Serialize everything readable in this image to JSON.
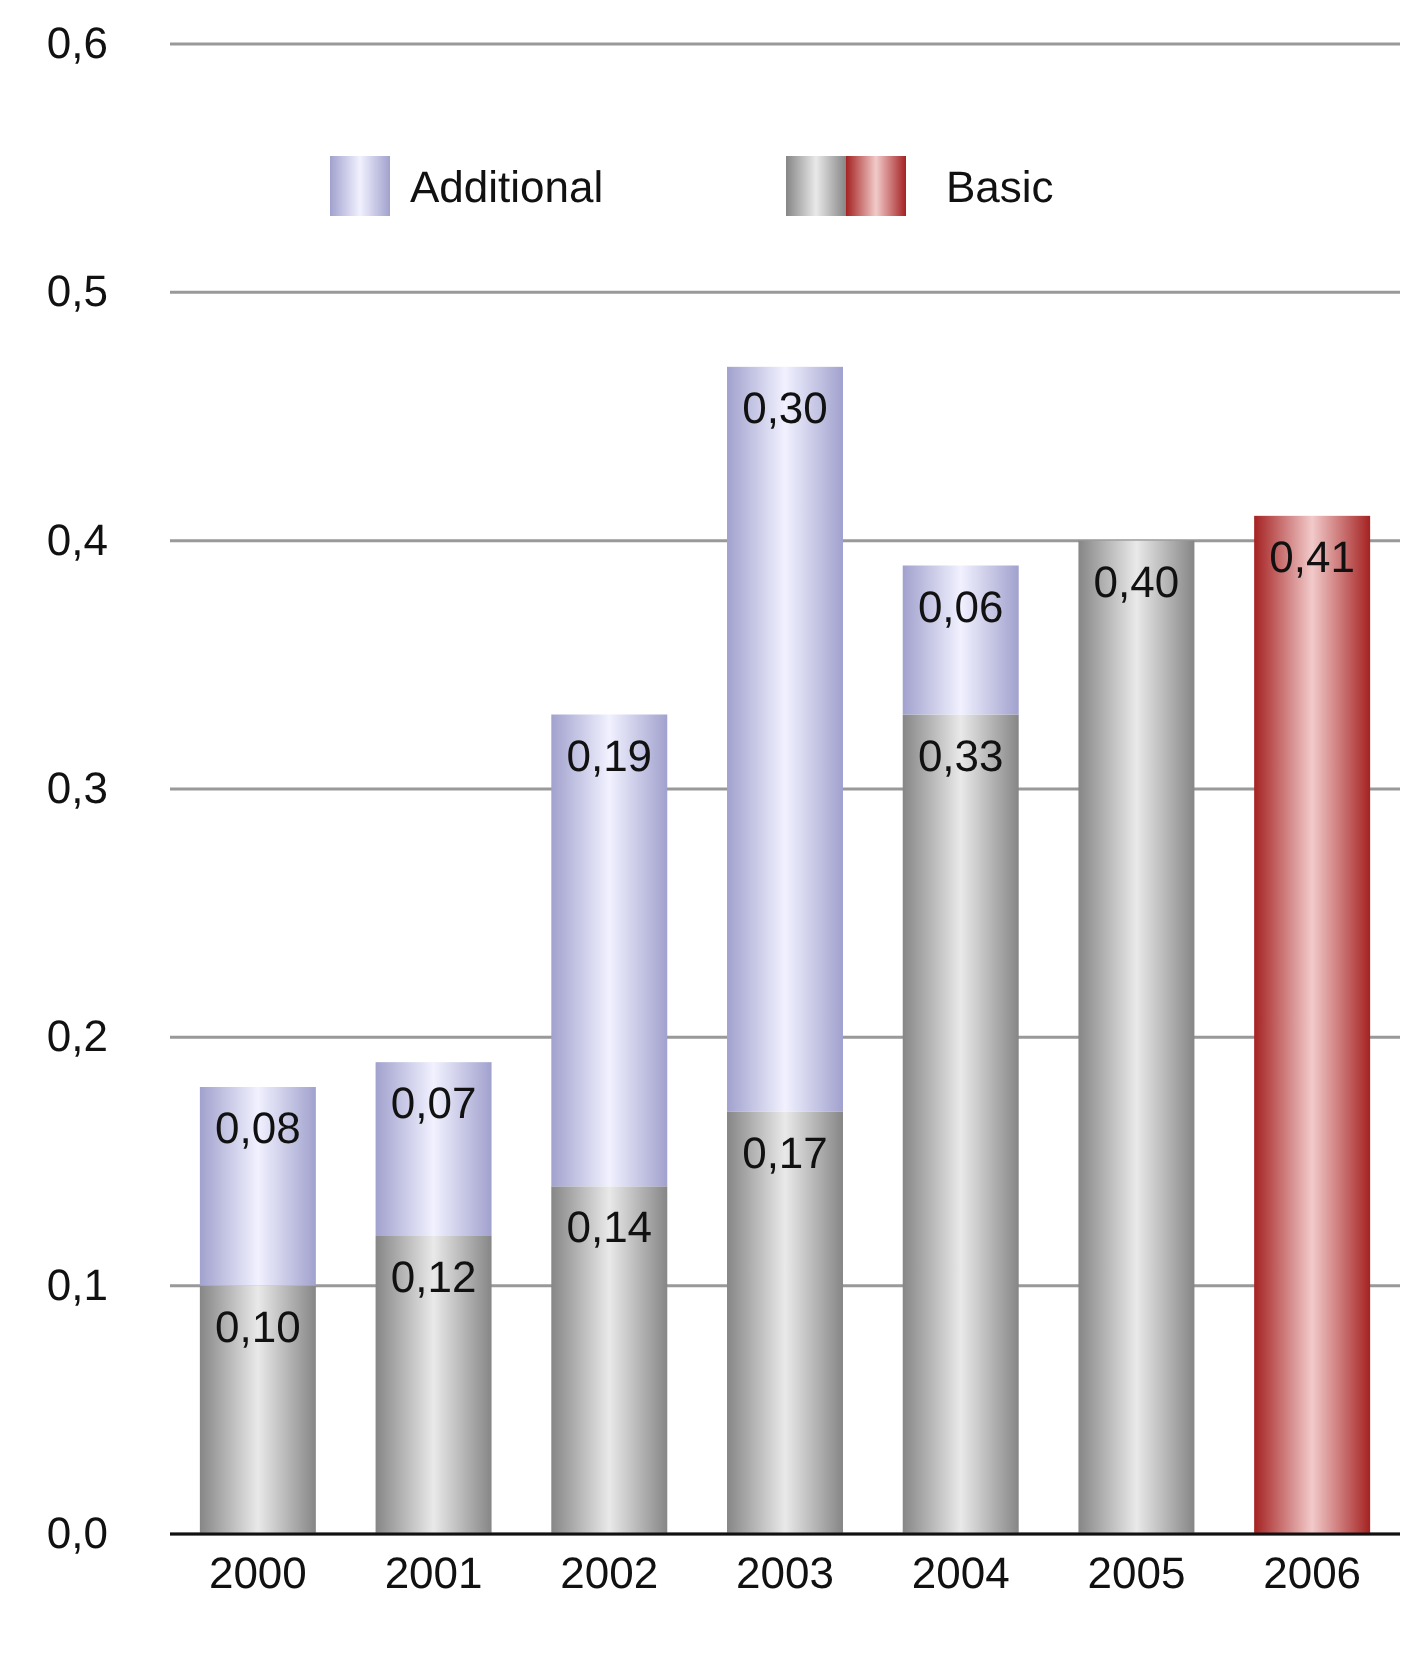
{
  "chart_data": {
    "type": "bar",
    "stacked": true,
    "categories": [
      "2000",
      "2001",
      "2002",
      "2003",
      "2004",
      "2005",
      "2006"
    ],
    "series": [
      {
        "name": "Basic",
        "color": "#a6a6a6",
        "colors": [
          "#a6a6a6",
          "#a6a6a6",
          "#a6a6a6",
          "#a6a6a6",
          "#a6a6a6",
          "#a6a6a6",
          "#cc2a2a"
        ],
        "values": [
          0.1,
          0.12,
          0.14,
          0.17,
          0.33,
          0.4,
          0.41
        ],
        "value_labels": [
          "0,10",
          "0,12",
          "0,14",
          "0,17",
          "0,33",
          "0,40",
          "0,41"
        ]
      },
      {
        "name": "Additional",
        "color": "#c8c8ff",
        "values": [
          0.08,
          0.07,
          0.19,
          0.3,
          0.06,
          null,
          null
        ],
        "value_labels": [
          "0,08",
          "0,07",
          "0,19",
          "0,30",
          "0,06",
          null,
          null
        ]
      }
    ],
    "ylim": [
      0,
      0.6
    ],
    "yticks": [
      {
        "value": 0,
        "label": "0,0"
      },
      {
        "value": 0.1,
        "label": "0,1"
      },
      {
        "value": 0.2,
        "label": "0,2"
      },
      {
        "value": 0.3,
        "label": "0,3"
      },
      {
        "value": 0.4,
        "label": "0,4"
      },
      {
        "value": 0.5,
        "label": "0,5"
      },
      {
        "value": 0.6,
        "label": "0,6"
      }
    ],
    "grid": "y",
    "legend": "top left"
  }
}
